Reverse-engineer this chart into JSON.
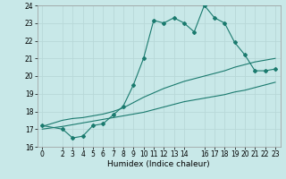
{
  "xlabel": "Humidex (Indice chaleur)",
  "ylabel": "",
  "xlim": [
    -0.5,
    23.5
  ],
  "ylim": [
    16,
    24
  ],
  "xticks": [
    0,
    2,
    3,
    4,
    5,
    6,
    7,
    8,
    9,
    10,
    11,
    12,
    13,
    14,
    16,
    17,
    18,
    19,
    20,
    21,
    22,
    23
  ],
  "yticks": [
    16,
    17,
    18,
    19,
    20,
    21,
    22,
    23,
    24
  ],
  "background_color": "#c8e8e8",
  "grid_color": "#e0f0f0",
  "line_color": "#1a7a6e",
  "figsize": [
    3.2,
    2.0
  ],
  "dpi": 100,
  "line1_x": [
    0,
    2,
    3,
    4,
    5,
    6,
    7,
    8,
    9,
    10,
    11,
    12,
    13,
    14,
    15,
    16,
    17,
    18,
    19,
    20,
    21,
    22,
    23
  ],
  "line1_y": [
    17.2,
    17.0,
    16.5,
    16.6,
    17.2,
    17.3,
    17.8,
    18.3,
    19.5,
    21.0,
    23.15,
    23.0,
    23.3,
    23.0,
    22.5,
    24.0,
    23.3,
    23.0,
    21.9,
    21.2,
    20.3,
    20.3,
    20.4
  ],
  "line2_x": [
    0,
    2,
    3,
    4,
    5,
    6,
    7,
    8,
    9,
    10,
    11,
    12,
    13,
    14,
    15,
    16,
    17,
    18,
    19,
    20,
    21,
    22,
    23
  ],
  "line2_y": [
    17.15,
    17.5,
    17.6,
    17.65,
    17.75,
    17.85,
    18.0,
    18.2,
    18.5,
    18.8,
    19.05,
    19.3,
    19.5,
    19.7,
    19.85,
    20.0,
    20.15,
    20.3,
    20.5,
    20.65,
    20.8,
    20.9,
    21.0
  ],
  "line3_x": [
    0,
    2,
    3,
    4,
    5,
    6,
    7,
    8,
    9,
    10,
    11,
    12,
    13,
    14,
    15,
    16,
    17,
    18,
    19,
    20,
    21,
    22,
    23
  ],
  "line3_y": [
    17.0,
    17.15,
    17.25,
    17.35,
    17.45,
    17.55,
    17.65,
    17.75,
    17.85,
    17.95,
    18.1,
    18.25,
    18.4,
    18.55,
    18.65,
    18.75,
    18.85,
    18.95,
    19.1,
    19.2,
    19.35,
    19.5,
    19.65
  ]
}
